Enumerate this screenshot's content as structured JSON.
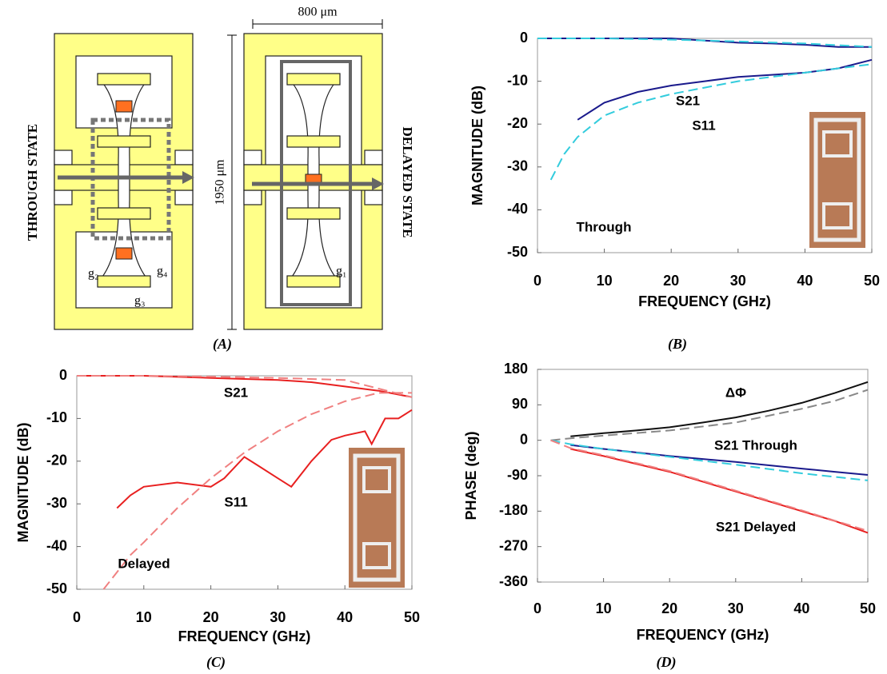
{
  "diagram": {
    "label": "(A)",
    "width_label": "800 μm",
    "height_label": "1950 μm",
    "left_state": "THROUGH STATE",
    "right_state": "DELAYED STATE",
    "gaps": [
      "g₂",
      "g₄",
      "g₃",
      "g₁"
    ]
  },
  "chart_data": [
    {
      "type": "line",
      "label": "(B)",
      "y_label": "MAGNITUDE (dB)",
      "x_label": "FREQUENCY (GHz)",
      "xlim": [
        0,
        50
      ],
      "xticks": [
        0,
        10,
        20,
        30,
        40,
        50
      ],
      "ylim": [
        -50,
        0
      ],
      "yticks": [
        0,
        -10,
        -20,
        -30,
        -40,
        -50
      ],
      "annotations": [
        "S21",
        "S11",
        "Through"
      ],
      "series": [
        {
          "color": "#1a1a8c",
          "dashed": false,
          "x": [
            0,
            10,
            20,
            25,
            30,
            35,
            40,
            45,
            50
          ],
          "values": [
            0,
            0,
            0,
            -0.5,
            -1,
            -1.2,
            -1.5,
            -2,
            -2
          ]
        },
        {
          "color": "#33ccdd",
          "dashed": true,
          "x": [
            0,
            10,
            20,
            30,
            40,
            50
          ],
          "values": [
            0,
            0,
            -0.3,
            -0.7,
            -1.2,
            -2
          ]
        },
        {
          "color": "#1a1a8c",
          "dashed": false,
          "x": [
            6,
            8,
            10,
            15,
            20,
            25,
            30,
            35,
            40,
            45,
            50
          ],
          "values": [
            -19,
            -17,
            -15,
            -12.5,
            -11,
            -10,
            -9,
            -8.5,
            -8,
            -7,
            -5
          ]
        },
        {
          "color": "#33ccdd",
          "dashed": true,
          "x": [
            2,
            4,
            6,
            10,
            15,
            20,
            25,
            30,
            35,
            40,
            45,
            50
          ],
          "values": [
            -33,
            -27,
            -23,
            -18,
            -15,
            -13,
            -11.5,
            -10,
            -9,
            -8,
            -7,
            -6
          ]
        }
      ]
    },
    {
      "type": "line",
      "label": "(C)",
      "y_label": "MAGNITUDE (dB)",
      "x_label": "FREQUENCY (GHz)",
      "xlim": [
        0,
        50
      ],
      "xticks": [
        0,
        10,
        20,
        30,
        40,
        50
      ],
      "ylim": [
        -50,
        0
      ],
      "yticks": [
        0,
        -10,
        -20,
        -30,
        -40,
        -50
      ],
      "annotations": [
        "S21",
        "S11",
        "Delayed"
      ],
      "series": [
        {
          "color": "#e82020",
          "dashed": false,
          "x": [
            0,
            10,
            20,
            30,
            35,
            40,
            45,
            50
          ],
          "values": [
            0,
            0,
            -0.5,
            -1,
            -1.5,
            -2.5,
            -3.5,
            -5
          ]
        },
        {
          "color": "#f08080",
          "dashed": true,
          "x": [
            0,
            10,
            20,
            30,
            40,
            45,
            50
          ],
          "values": [
            0,
            0,
            -0.2,
            -0.5,
            -1,
            -3,
            -5
          ]
        },
        {
          "color": "#e82020",
          "dashed": false,
          "x": [
            6,
            8,
            10,
            15,
            20,
            22,
            25,
            27,
            30,
            32,
            35,
            38,
            40,
            43,
            44,
            46,
            48,
            50
          ],
          "values": [
            -31,
            -28,
            -26,
            -25,
            -26,
            -24,
            -19,
            -21,
            -24,
            -26,
            -20,
            -15,
            -14,
            -13,
            -16,
            -10,
            -10,
            -8
          ]
        },
        {
          "color": "#f08080",
          "dashed": true,
          "x": [
            4,
            6,
            8,
            10,
            15,
            20,
            25,
            30,
            35,
            40,
            45,
            50
          ],
          "values": [
            -50,
            -46,
            -42,
            -39,
            -31,
            -24,
            -18,
            -13,
            -9,
            -6,
            -4,
            -4
          ]
        }
      ]
    },
    {
      "type": "line",
      "label": "(D)",
      "y_label": "PHASE (deg)",
      "x_label": "FREQUENCY (GHz)",
      "xlim": [
        0,
        50
      ],
      "xticks": [
        0,
        10,
        20,
        30,
        40,
        50
      ],
      "ylim": [
        -360,
        180
      ],
      "yticks": [
        180,
        90,
        0,
        -90,
        -180,
        -270,
        -360
      ],
      "annotations": [
        "ΔΦ",
        "S21 Through",
        "S21 Delayed"
      ],
      "series": [
        {
          "color": "#111111",
          "dashed": false,
          "x": [
            5,
            10,
            15,
            20,
            25,
            30,
            35,
            40,
            45,
            50
          ],
          "values": [
            10,
            18,
            25,
            33,
            45,
            58,
            75,
            95,
            120,
            148
          ]
        },
        {
          "color": "#888888",
          "dashed": true,
          "x": [
            2,
            5,
            10,
            20,
            30,
            40,
            45,
            50
          ],
          "values": [
            0,
            5,
            12,
            25,
            45,
            80,
            100,
            128
          ]
        },
        {
          "color": "#1a1a8c",
          "dashed": false,
          "x": [
            5,
            10,
            20,
            30,
            40,
            45,
            50
          ],
          "values": [
            -12,
            -22,
            -40,
            -55,
            -72,
            -80,
            -88
          ]
        },
        {
          "color": "#33ccdd",
          "dashed": true,
          "x": [
            2,
            5,
            10,
            20,
            30,
            40,
            50
          ],
          "values": [
            0,
            -10,
            -22,
            -42,
            -62,
            -84,
            -102
          ]
        },
        {
          "color": "#e82020",
          "dashed": false,
          "x": [
            5,
            10,
            20,
            30,
            40,
            45,
            50
          ],
          "values": [
            -22,
            -40,
            -80,
            -130,
            -180,
            -205,
            -235
          ]
        },
        {
          "color": "#f08080",
          "dashed": true,
          "x": [
            2,
            5,
            10,
            20,
            30,
            40,
            50
          ],
          "values": [
            0,
            -20,
            -38,
            -78,
            -128,
            -178,
            -230
          ]
        }
      ]
    }
  ]
}
